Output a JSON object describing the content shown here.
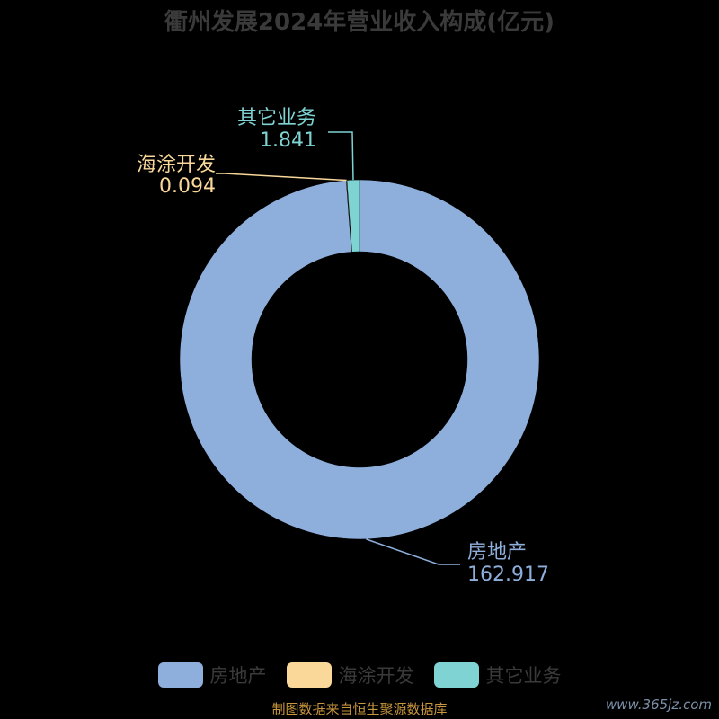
{
  "title": "衢州发展2024年营业收入构成(亿元)",
  "source": "制图数据来自恒生聚源数据库",
  "watermark": "www.365jz.com",
  "chart_data": {
    "type": "pie",
    "variant": "donut",
    "title": "衢州发展2024年营业收入构成(亿元)",
    "categories": [
      "房地产",
      "海涂开发",
      "其它业务"
    ],
    "values": [
      162.917,
      0.094,
      1.841
    ],
    "value_labels": [
      "162.917",
      "0.094",
      "1.841"
    ],
    "colors": [
      "#8eafdb",
      "#f9d89a",
      "#7fd3d3"
    ],
    "legend_position": "bottom"
  }
}
